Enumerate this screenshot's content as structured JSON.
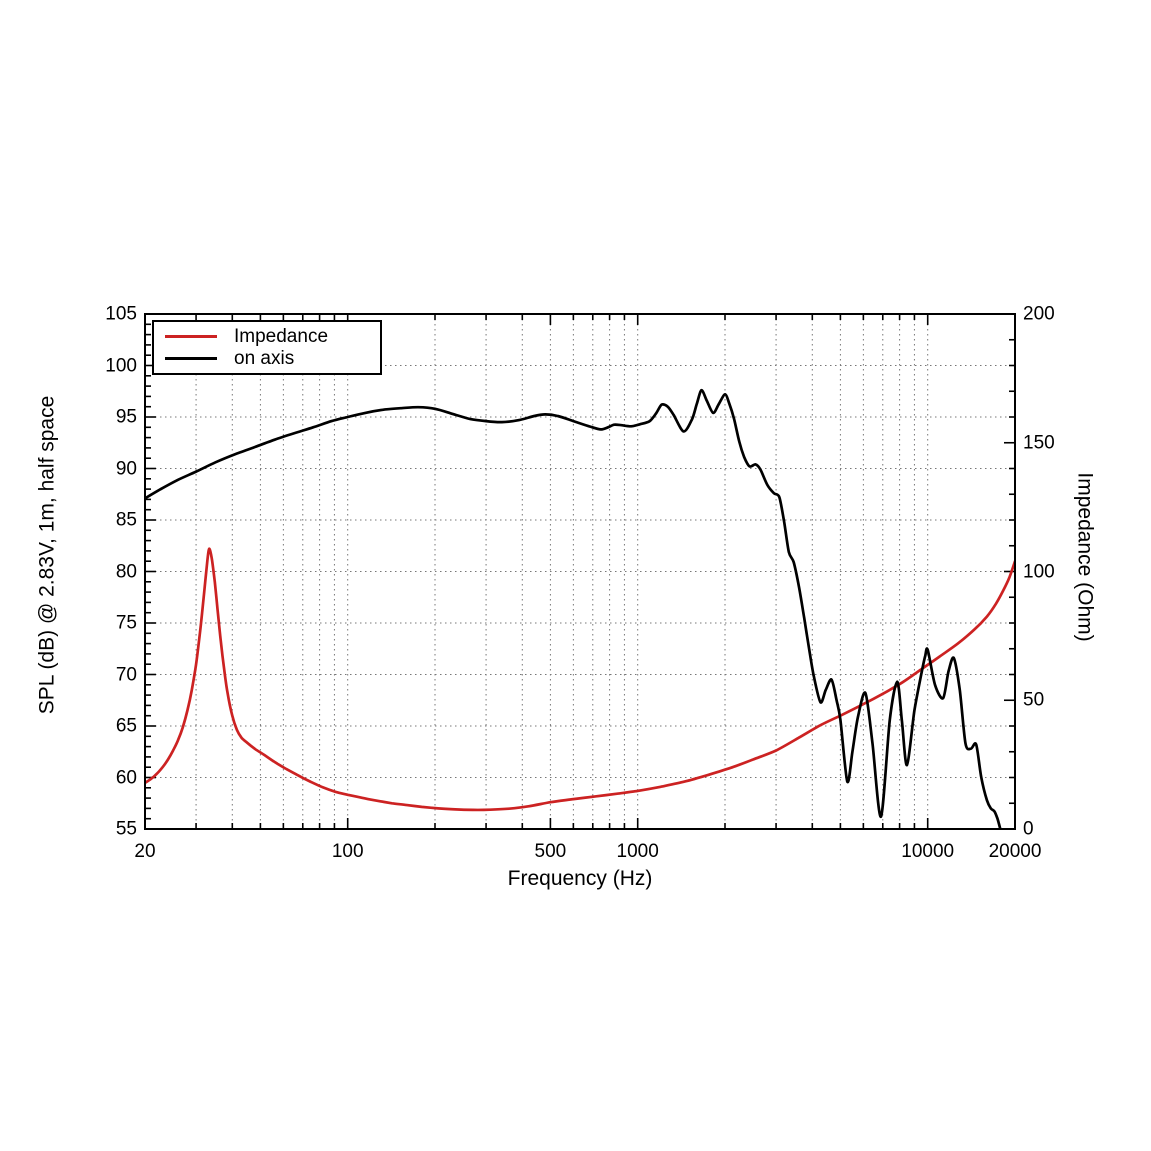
{
  "page": {
    "background": "#ffffff"
  },
  "chart_data": {
    "type": "line",
    "grid": "dotted",
    "legend_position": "top-left-inside",
    "legend": [
      {
        "label": "Impedance",
        "color": "#cc2222"
      },
      {
        "label": "on axis",
        "color": "#000000"
      }
    ],
    "axes": {
      "x": {
        "title": "Frequency (Hz)",
        "scale": "log",
        "min": 20,
        "max": 20000,
        "labeled_ticks": [
          20,
          100,
          500,
          1000,
          10000,
          20000
        ],
        "grid_lines": [
          30,
          40,
          50,
          60,
          70,
          80,
          90,
          100,
          200,
          300,
          400,
          500,
          600,
          700,
          800,
          900,
          1000,
          2000,
          3000,
          4000,
          5000,
          6000,
          7000,
          8000,
          9000,
          10000
        ]
      },
      "y_left": {
        "title": "SPL (dB) @ 2.83V, 1m, half space",
        "scale": "linear",
        "min": 55,
        "max": 105,
        "labeled_ticks": [
          105,
          100,
          95,
          90,
          85,
          80,
          75,
          70,
          65,
          60,
          55
        ],
        "minor_step": 1,
        "grid_step": 5
      },
      "y_right": {
        "title": "Impedance (Ohm)",
        "scale": "linear",
        "min": 0,
        "max": 200,
        "labeled_ticks": [
          200,
          150,
          100,
          50,
          0
        ],
        "minor_step": 10
      }
    },
    "series": [
      {
        "name": "Impedance",
        "axis": "right",
        "color": "#cc2222",
        "unit": "Ohm",
        "points": [
          [
            20,
            17.9
          ],
          [
            21,
            19.5
          ],
          [
            22,
            21.5
          ],
          [
            23,
            24
          ],
          [
            24,
            27
          ],
          [
            25,
            30.5
          ],
          [
            26,
            34.5
          ],
          [
            27,
            39.5
          ],
          [
            28,
            46
          ],
          [
            29,
            54
          ],
          [
            30,
            64
          ],
          [
            31,
            77
          ],
          [
            32,
            92
          ],
          [
            32.8,
            104
          ],
          [
            33.3,
            108.8
          ],
          [
            34,
            105
          ],
          [
            34.8,
            96
          ],
          [
            35.6,
            85
          ],
          [
            36.5,
            73
          ],
          [
            37.5,
            62
          ],
          [
            38.5,
            53
          ],
          [
            40,
            44
          ],
          [
            41.5,
            38.5
          ],
          [
            43,
            35.5
          ],
          [
            45,
            33.5
          ],
          [
            48,
            31
          ],
          [
            52,
            28.5
          ],
          [
            56,
            26
          ],
          [
            61,
            23.5
          ],
          [
            67,
            21
          ],
          [
            74,
            18.5
          ],
          [
            82,
            16.2
          ],
          [
            91,
            14.4
          ],
          [
            100,
            13.3
          ],
          [
            112,
            12.1
          ],
          [
            126,
            11
          ],
          [
            142,
            10
          ],
          [
            160,
            9.3
          ],
          [
            180,
            8.6
          ],
          [
            205,
            8
          ],
          [
            235,
            7.6
          ],
          [
            270,
            7.4
          ],
          [
            310,
            7.5
          ],
          [
            360,
            7.9
          ],
          [
            420,
            8.8
          ],
          [
            500,
            10.4
          ],
          [
            600,
            11.6
          ],
          [
            720,
            12.7
          ],
          [
            850,
            13.7
          ],
          [
            1000,
            14.8
          ],
          [
            1200,
            16.4
          ],
          [
            1450,
            18.4
          ],
          [
            1750,
            21
          ],
          [
            2100,
            23.8
          ],
          [
            2500,
            27
          ],
          [
            3000,
            30.5
          ],
          [
            3600,
            35.5
          ],
          [
            4300,
            40.5
          ],
          [
            5100,
            44.5
          ],
          [
            6000,
            48.5
          ],
          [
            7000,
            52.5
          ],
          [
            8200,
            57
          ],
          [
            9500,
            62
          ],
          [
            11000,
            67
          ],
          [
            12700,
            72
          ],
          [
            14500,
            77.5
          ],
          [
            16000,
            82.5
          ],
          [
            17200,
            87.5
          ],
          [
            18200,
            92.5
          ],
          [
            19100,
            97.5
          ],
          [
            20000,
            104
          ]
        ]
      },
      {
        "name": "on axis",
        "axis": "left",
        "color": "#000000",
        "unit": "dB",
        "points": [
          [
            20,
            87.1
          ],
          [
            23,
            88.1
          ],
          [
            26,
            88.9
          ],
          [
            30,
            89.7
          ],
          [
            35,
            90.6
          ],
          [
            41,
            91.4
          ],
          [
            48,
            92.1
          ],
          [
            56,
            92.8
          ],
          [
            65,
            93.4
          ],
          [
            76,
            94.0
          ],
          [
            88,
            94.6
          ],
          [
            100,
            95.0
          ],
          [
            115,
            95.4
          ],
          [
            132,
            95.7
          ],
          [
            152,
            95.85
          ],
          [
            175,
            95.95
          ],
          [
            200,
            95.8
          ],
          [
            230,
            95.3
          ],
          [
            265,
            94.8
          ],
          [
            300,
            94.6
          ],
          [
            340,
            94.5
          ],
          [
            390,
            94.7
          ],
          [
            440,
            95.1
          ],
          [
            480,
            95.25
          ],
          [
            530,
            95.1
          ],
          [
            600,
            94.6
          ],
          [
            680,
            94.1
          ],
          [
            745,
            93.8
          ],
          [
            790,
            94.0
          ],
          [
            830,
            94.25
          ],
          [
            880,
            94.2
          ],
          [
            950,
            94.1
          ],
          [
            1020,
            94.3
          ],
          [
            1100,
            94.6
          ],
          [
            1160,
            95.4
          ],
          [
            1210,
            96.2
          ],
          [
            1270,
            96.0
          ],
          [
            1330,
            95.2
          ],
          [
            1440,
            93.6
          ],
          [
            1540,
            94.8
          ],
          [
            1600,
            96.3
          ],
          [
            1660,
            97.6
          ],
          [
            1730,
            96.6
          ],
          [
            1820,
            95.4
          ],
          [
            1900,
            96.2
          ],
          [
            2000,
            97.2
          ],
          [
            2070,
            96.3
          ],
          [
            2150,
            94.8
          ],
          [
            2240,
            92.6
          ],
          [
            2330,
            91.1
          ],
          [
            2430,
            90.2
          ],
          [
            2550,
            90.4
          ],
          [
            2650,
            89.9
          ],
          [
            2800,
            88.4
          ],
          [
            2950,
            87.6
          ],
          [
            3080,
            87.2
          ],
          [
            3200,
            84.8
          ],
          [
            3320,
            81.9
          ],
          [
            3450,
            80.9
          ],
          [
            3600,
            78.5
          ],
          [
            3750,
            75.5
          ],
          [
            3900,
            72.5
          ],
          [
            4050,
            69.8
          ],
          [
            4270,
            67.3
          ],
          [
            4450,
            68.5
          ],
          [
            4660,
            69.5
          ],
          [
            4850,
            67.5
          ],
          [
            5000,
            65.6
          ],
          [
            5280,
            59.6
          ],
          [
            5500,
            62.5
          ],
          [
            5750,
            65.9
          ],
          [
            6100,
            68.2
          ],
          [
            6450,
            63.3
          ],
          [
            6900,
            56.2
          ],
          [
            7400,
            65.6
          ],
          [
            7850,
            69.3
          ],
          [
            8150,
            65.5
          ],
          [
            8480,
            61.2
          ],
          [
            9000,
            66.5
          ],
          [
            9500,
            70.0
          ],
          [
            9800,
            71.8
          ],
          [
            10000,
            72.4
          ],
          [
            10600,
            69.0
          ],
          [
            11300,
            67.7
          ],
          [
            11800,
            70.3
          ],
          [
            12300,
            71.6
          ],
          [
            12900,
            68.5
          ],
          [
            13500,
            63.3
          ],
          [
            14100,
            62.8
          ],
          [
            14700,
            63.2
          ],
          [
            15300,
            60.0
          ],
          [
            16000,
            57.8
          ],
          [
            16500,
            57.0
          ],
          [
            17000,
            56.7
          ],
          [
            17400,
            56.0
          ],
          [
            17800,
            55.0
          ]
        ]
      }
    ]
  }
}
